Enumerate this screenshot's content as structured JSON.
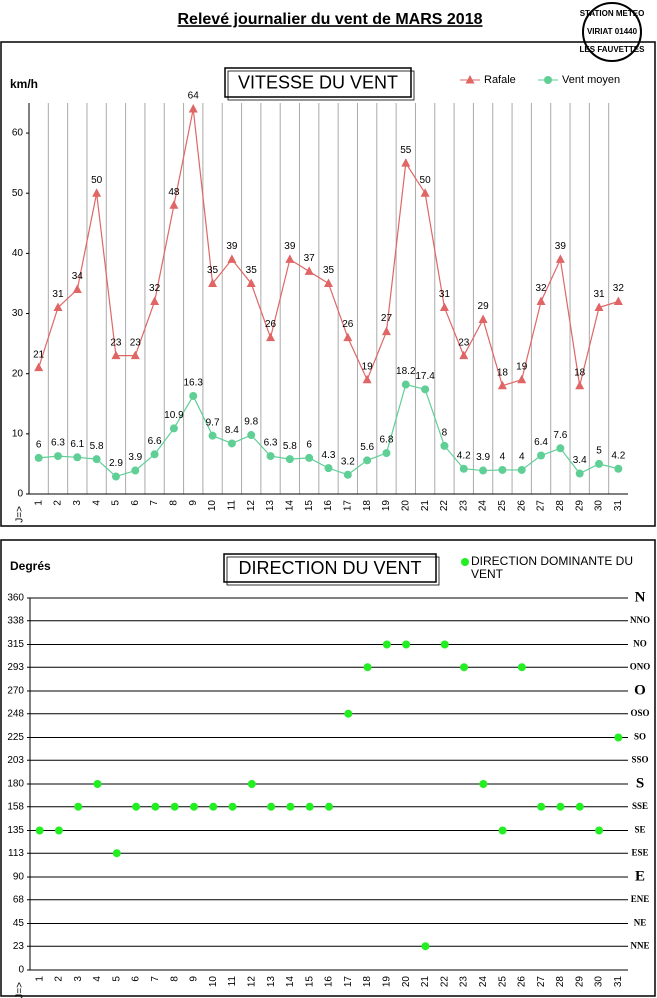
{
  "header": {
    "title": "Relevé journalier du vent de MARS 2018",
    "stamp": [
      "STATION METEO",
      "VIRIAT 01440",
      "LES FAUVETTES"
    ]
  },
  "chart_data": [
    {
      "type": "line",
      "title": "VITESSE DU VENT",
      "y_label": "km/h",
      "x_label": "J=>",
      "categories": [
        1,
        2,
        3,
        4,
        5,
        6,
        7,
        8,
        9,
        10,
        11,
        12,
        13,
        14,
        15,
        16,
        17,
        18,
        19,
        20,
        21,
        22,
        23,
        24,
        25,
        26,
        27,
        28,
        29,
        30,
        31
      ],
      "series": [
        {
          "name": "Rafale",
          "color": "#e06666",
          "marker": "triangle",
          "values": [
            21,
            31,
            34,
            50,
            23,
            23,
            32,
            48,
            64,
            35,
            39,
            35,
            26,
            39,
            37,
            35,
            26,
            19,
            27,
            55,
            50,
            31,
            23,
            29,
            18,
            19,
            32,
            39,
            18,
            31,
            32
          ]
        },
        {
          "name": "Vent moyen",
          "color": "#5fcf96",
          "marker": "circle",
          "values": [
            6,
            6.3,
            6.1,
            5.8,
            2.9,
            3.9,
            6.6,
            10.9,
            16.3,
            9.7,
            8.4,
            9.8,
            6.3,
            5.8,
            6,
            4.3,
            3.2,
            5.6,
            6.8,
            18.2,
            17.4,
            8,
            4.2,
            3.9,
            4,
            4,
            6.4,
            7.6,
            3.4,
            5,
            4.2
          ]
        }
      ],
      "ylim": [
        0,
        65
      ],
      "yticks": [
        0,
        10,
        20,
        30,
        40,
        50,
        60
      ],
      "grid": "x",
      "legend": "upper right",
      "data_labels": true
    },
    {
      "type": "scatter",
      "title": "DIRECTION DU VENT",
      "y_label": "Degrés",
      "x_label": "J=>",
      "categories": [
        1,
        2,
        3,
        4,
        5,
        6,
        7,
        8,
        9,
        10,
        11,
        12,
        13,
        14,
        15,
        16,
        17,
        18,
        19,
        20,
        21,
        22,
        23,
        24,
        25,
        26,
        27,
        28,
        29,
        30,
        31
      ],
      "series": [
        {
          "name": "DIRECTION DOMINANTE DU VENT",
          "color": "#22ee22",
          "marker": "circle",
          "values": [
            135,
            135,
            158,
            180,
            113,
            158,
            158,
            158,
            158,
            158,
            158,
            180,
            158,
            158,
            158,
            158,
            248,
            293,
            315,
            315,
            23,
            315,
            293,
            180,
            135,
            293,
            158,
            158,
            158,
            135,
            225
          ]
        }
      ],
      "ylim": [
        0,
        360
      ],
      "yticks": [
        0,
        23,
        45,
        68,
        90,
        113,
        135,
        158,
        180,
        203,
        225,
        248,
        270,
        293,
        315,
        338,
        360
      ],
      "direction_labels": [
        null,
        "NNE",
        "NE",
        "ENE",
        "E",
        "ESE",
        "SE",
        "SSE",
        "S",
        "SSO",
        "SO",
        "OSO",
        "O",
        "ONO",
        "NO",
        "NNO",
        "N"
      ],
      "grid": "y",
      "legend": "upper right",
      "data_labels": false
    }
  ]
}
